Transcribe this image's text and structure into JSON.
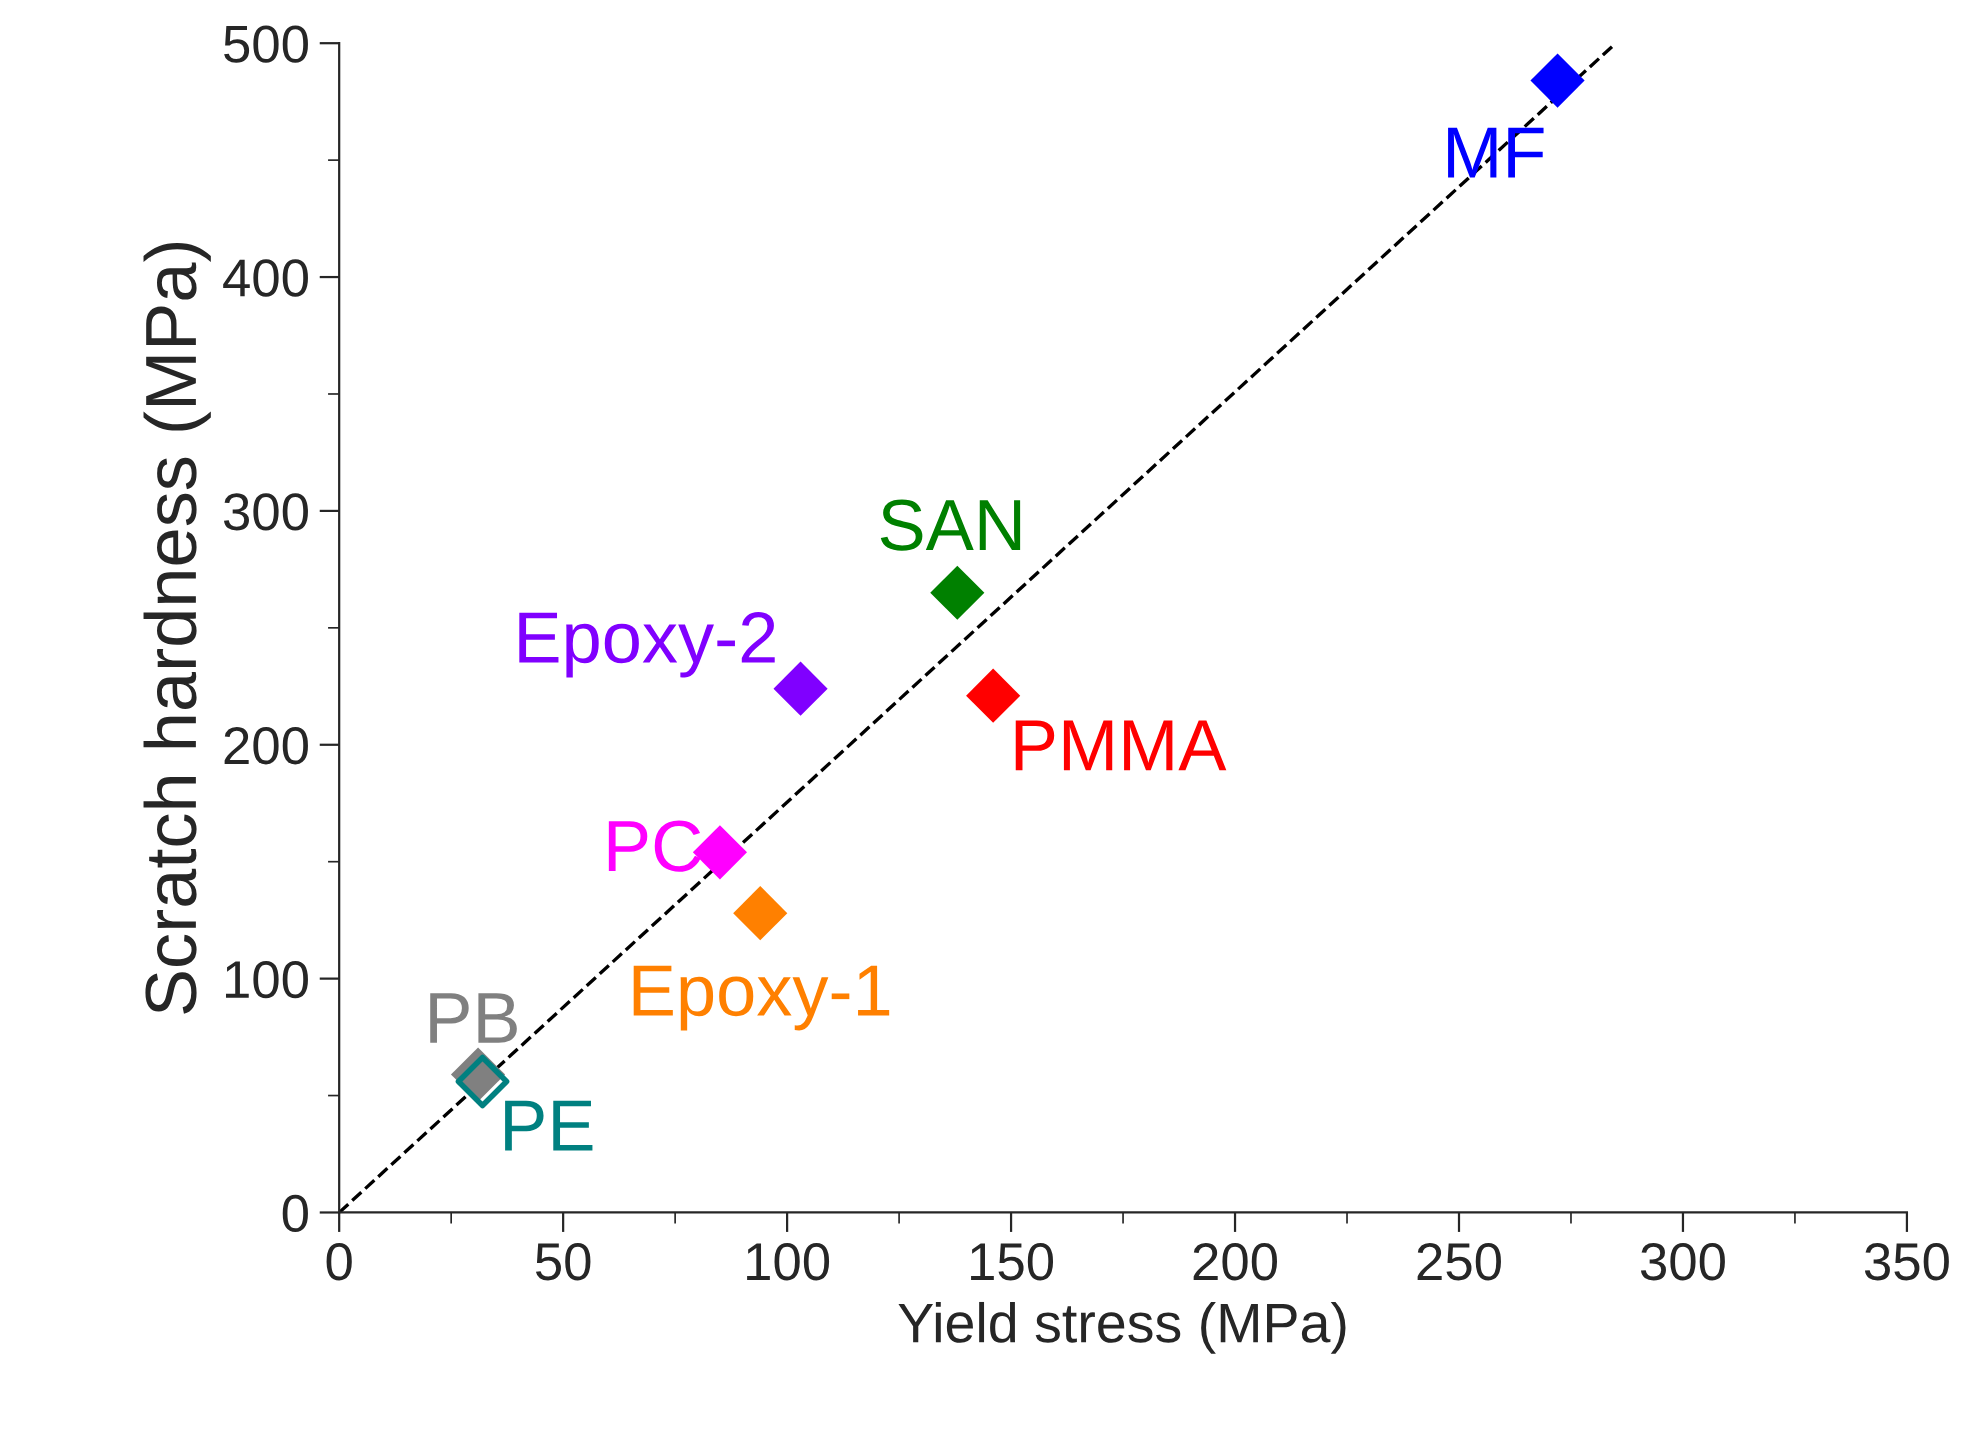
{
  "chart_data": {
    "type": "scatter",
    "xlabel": "Yield stress (MPa)",
    "ylabel": "Scratch hardness (MPa)",
    "xlim": [
      0,
      350
    ],
    "ylim": [
      0,
      500
    ],
    "xticks": [
      0,
      50,
      100,
      150,
      200,
      250,
      300,
      350
    ],
    "yticks": [
      0,
      100,
      200,
      300,
      400,
      500
    ],
    "marker": "diamond",
    "grid": false,
    "legend": false,
    "series": [
      {
        "name": "MF",
        "color": "#0000ff",
        "x": [
          272
        ],
        "values": [
          484
        ]
      },
      {
        "name": "SAN",
        "color": "#008000",
        "x": [
          138
        ],
        "values": [
          265
        ]
      },
      {
        "name": "Epoxy-2",
        "color": "#8000ff",
        "x": [
          103
        ],
        "values": [
          224
        ]
      },
      {
        "name": "PMMA",
        "color": "#ff0000",
        "x": [
          146
        ],
        "values": [
          221
        ]
      },
      {
        "name": "PC",
        "color": "#ff00ff",
        "x": [
          85
        ],
        "values": [
          154
        ]
      },
      {
        "name": "Epoxy-1",
        "color": "#ff8000",
        "x": [
          94
        ],
        "values": [
          128
        ]
      },
      {
        "name": "PB",
        "color": "#808080",
        "x": [
          31
        ],
        "values": [
          59
        ]
      },
      {
        "name": "PE",
        "color": "#008080",
        "x": [
          32
        ],
        "values": [
          56
        ]
      },
      {
        "type": "line",
        "color": "#000000",
        "line_style": "dashed",
        "marker": "none",
        "x": [
          0,
          285
        ],
        "values": [
          0,
          500
        ]
      }
    ]
  }
}
